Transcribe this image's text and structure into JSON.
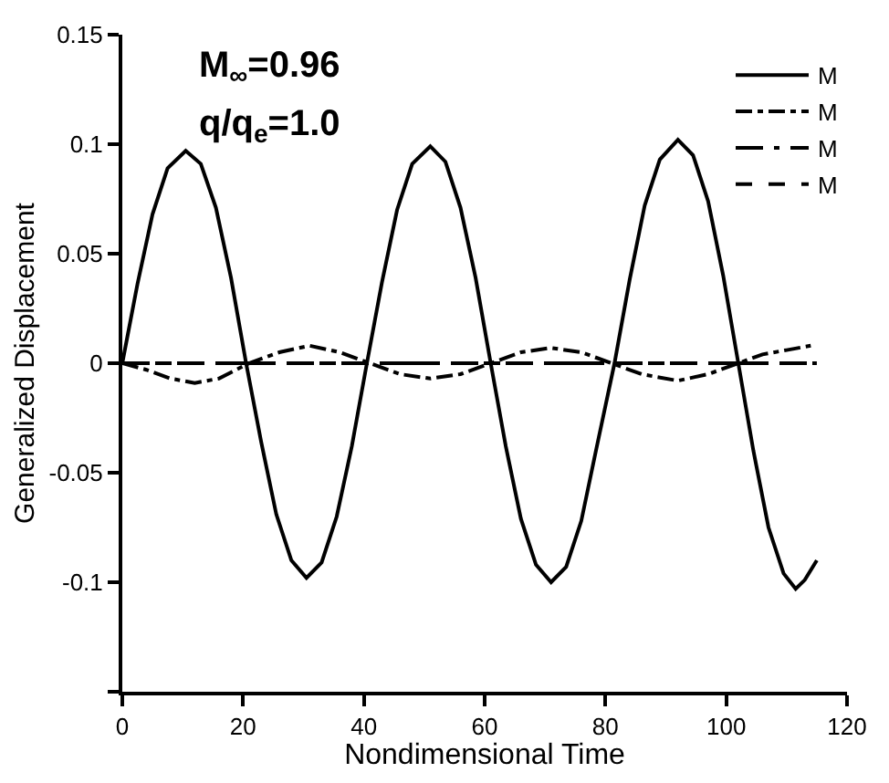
{
  "chart_data": {
    "type": "line",
    "xlabel": "Nondimensional Time",
    "ylabel": "Generalized Displacement",
    "annotations": [
      "M$_{∞}$=0.96",
      "q/q$_{e}$=1.0"
    ],
    "xlim": [
      0,
      120
    ],
    "xticks": [
      0,
      20,
      40,
      60,
      80,
      100,
      120
    ],
    "ylim": [
      -0.15,
      0.15
    ],
    "yticks": [
      {
        "value": -0.15,
        "label": null
      },
      -0.1,
      -0.05,
      0,
      0.05,
      0.1,
      0.15
    ],
    "grid": false,
    "legend": "top right",
    "marker": "none",
    "series": [
      {
        "name": "M",
        "color": "#000000",
        "line_style": "solid",
        "x": [
          0,
          2.5,
          5,
          7.5,
          10.5,
          13,
          15.5,
          18,
          20.5,
          23,
          25.5,
          28,
          30.5,
          33,
          35.5,
          38,
          40.5,
          43,
          45.5,
          48,
          51,
          53.5,
          56,
          58.5,
          61,
          63.5,
          66,
          68.5,
          71,
          73.5,
          76,
          78.5,
          81.5,
          84,
          86.5,
          89,
          92,
          94.5,
          97,
          99.5,
          102,
          104.5,
          107,
          109.5,
          111.5,
          113,
          115
        ],
        "values": [
          0,
          0.036,
          0.068,
          0.089,
          0.097,
          0.091,
          0.071,
          0.039,
          0,
          -0.036,
          -0.069,
          -0.09,
          -0.098,
          -0.091,
          -0.07,
          -0.038,
          0,
          0.037,
          0.07,
          0.091,
          0.099,
          0.092,
          0.071,
          0.039,
          0,
          -0.038,
          -0.071,
          -0.092,
          -0.1,
          -0.093,
          -0.072,
          -0.039,
          0,
          0.038,
          0.072,
          0.093,
          0.102,
          0.095,
          0.074,
          0.04,
          0,
          -0.04,
          -0.075,
          -0.096,
          -0.103,
          -0.099,
          -0.09
        ]
      },
      {
        "name": "M",
        "color": "#000000",
        "line_style": "dashdot",
        "x": [
          0,
          4,
          8,
          12,
          16,
          21,
          26,
          31,
          36,
          41,
          46,
          51,
          56,
          61,
          66,
          71,
          76,
          81,
          86,
          92,
          97,
          102,
          106,
          110,
          114
        ],
        "values": [
          0,
          -0.003,
          -0.007,
          -0.009,
          -0.007,
          0,
          0.005,
          0.008,
          0.005,
          0,
          -0.005,
          -0.007,
          -0.005,
          0,
          0.005,
          0.007,
          0.005,
          0,
          -0.005,
          -0.008,
          -0.005,
          0,
          0.004,
          0.006,
          0.008
        ]
      },
      {
        "name": "M",
        "color": "#000000",
        "line_style": "longdashdot",
        "x": [
          0,
          20,
          40,
          60,
          80,
          100,
          115
        ],
        "values": [
          0,
          0,
          0,
          0,
          0,
          0,
          0
        ]
      },
      {
        "name": "M",
        "color": "#000000",
        "line_style": "dashed",
        "x": [
          0,
          20,
          40,
          60,
          80,
          100,
          115
        ],
        "values": [
          0,
          0,
          0,
          0,
          0,
          0,
          0
        ]
      }
    ]
  }
}
